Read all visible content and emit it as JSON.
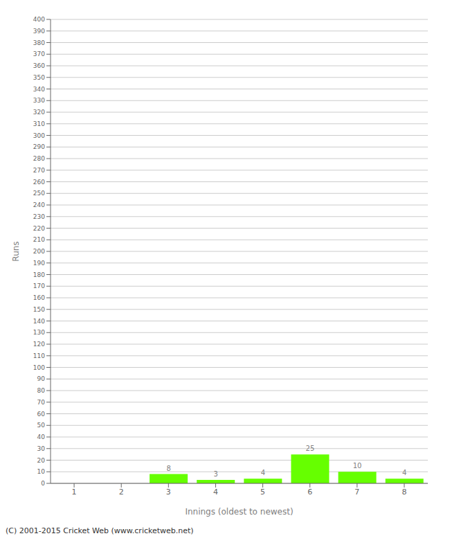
{
  "chart_data": {
    "type": "bar",
    "xlabel": "Innings (oldest to newest)",
    "ylabel": "Runs",
    "categories": [
      "1",
      "2",
      "3",
      "4",
      "5",
      "6",
      "7",
      "8"
    ],
    "values": [
      0,
      0,
      8,
      3,
      4,
      25,
      10,
      4
    ],
    "color": "#66ff00",
    "ylim": [
      0,
      400
    ],
    "yticks": [
      0,
      10,
      20,
      30,
      40,
      50,
      60,
      70,
      80,
      90,
      100,
      110,
      120,
      130,
      140,
      150,
      160,
      170,
      180,
      190,
      200,
      210,
      220,
      230,
      240,
      250,
      260,
      270,
      280,
      290,
      300,
      310,
      320,
      330,
      340,
      350,
      360,
      370,
      380,
      390,
      400
    ],
    "grid": true,
    "data_labels": true,
    "annotations": [
      "(C) 2001-2015 Cricket Web (www.cricketweb.net)"
    ]
  }
}
